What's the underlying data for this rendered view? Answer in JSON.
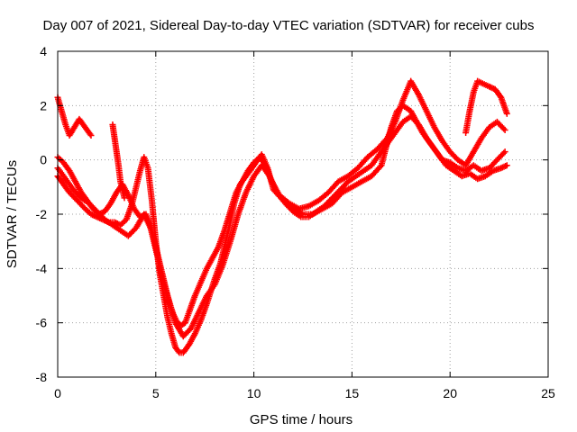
{
  "chart_data": {
    "type": "scatter",
    "title": "Day 007 of 2021, Sidereal Day-to-day VTEC variation (SDTVAR) for receiver cubs",
    "xlabel": "GPS time / hours",
    "ylabel": "SDTVAR / TECUs",
    "xlim": [
      0,
      25
    ],
    "ylim": [
      -8,
      4
    ],
    "xticks": [
      0,
      5,
      10,
      15,
      20,
      25
    ],
    "yticks": [
      -8,
      -6,
      -4,
      -2,
      0,
      2,
      4
    ],
    "xtick_labels": [
      "0",
      "5",
      "10",
      "15",
      "20",
      "25"
    ],
    "ytick_labels": [
      "-8",
      "-6",
      "-4",
      "-2",
      "0",
      "2",
      "4"
    ],
    "grid": true,
    "legend": "none",
    "marker": "+",
    "color": "#ff0000",
    "series": [
      {
        "x": [
          0.0,
          0.3,
          0.6,
          1.0,
          1.4,
          1.7,
          2.0,
          2.3,
          2.6,
          2.9,
          3.2,
          3.5,
          3.8,
          4.0,
          4.2,
          4.4,
          4.6,
          4.8,
          5.0,
          5.2,
          5.4,
          5.6,
          5.8,
          6.0,
          6.2,
          6.4,
          6.7,
          7.0,
          7.3,
          7.6,
          8.0,
          8.3,
          8.7,
          9.0,
          9.3,
          9.6,
          9.9,
          10.2,
          10.4,
          10.7,
          11.0,
          11.5,
          12.0,
          12.5,
          13.0,
          13.5,
          14.0,
          14.5,
          15.0,
          15.5,
          16.0,
          16.5,
          17.0,
          17.3,
          17.6,
          18.0,
          18.3,
          18.6,
          19.0,
          19.4,
          19.8,
          20.2,
          20.6,
          21.0,
          21.4,
          21.8,
          22.2,
          22.6,
          22.9
        ],
        "y": [
          -0.6,
          -0.9,
          -1.2,
          -1.5,
          -1.8,
          -2.0,
          -2.1,
          -2.2,
          -2.3,
          -2.3,
          -2.4,
          -2.2,
          -1.6,
          -1.0,
          -0.4,
          0.1,
          -0.3,
          -1.5,
          -3.0,
          -4.2,
          -5.0,
          -5.8,
          -6.4,
          -6.9,
          -7.1,
          -7.1,
          -6.8,
          -6.4,
          -5.9,
          -5.3,
          -4.4,
          -3.8,
          -2.6,
          -1.6,
          -0.9,
          -0.6,
          -0.3,
          0.0,
          0.2,
          -0.3,
          -1.1,
          -1.5,
          -1.8,
          -2.0,
          -2.0,
          -1.8,
          -1.6,
          -1.2,
          -1.0,
          -0.8,
          -0.6,
          -0.2,
          1.2,
          1.8,
          2.0,
          1.8,
          1.4,
          1.0,
          0.6,
          0.2,
          -0.2,
          -0.4,
          -0.6,
          -0.5,
          -0.7,
          -0.6,
          -0.4,
          -0.3,
          -0.2
        ]
      },
      {
        "x": [
          0.0,
          0.3,
          0.6,
          0.9,
          1.2,
          1.5,
          1.8,
          2.1,
          2.4,
          2.7,
          3.0,
          3.3,
          3.6,
          3.9,
          4.2,
          4.5,
          4.7,
          4.9,
          5.1,
          5.3,
          5.5,
          5.7,
          5.9,
          6.1,
          6.3,
          6.5,
          6.7,
          7.0,
          7.3,
          7.6,
          7.9,
          8.2,
          8.5,
          8.8,
          9.1,
          9.4,
          9.7,
          10.0,
          10.3,
          10.6,
          10.9,
          11.3,
          11.8,
          12.3,
          12.8,
          13.3,
          13.8,
          14.3,
          14.8,
          15.3,
          15.8,
          16.3,
          16.8,
          17.2,
          17.6,
          18.0,
          18.4,
          18.8,
          19.2,
          19.6,
          20.0,
          20.4,
          20.8,
          21.2,
          21.6,
          22.0,
          22.4,
          22.8
        ],
        "y": [
          0.1,
          -0.1,
          -0.4,
          -0.8,
          -1.2,
          -1.5,
          -1.8,
          -2.0,
          -1.9,
          -1.6,
          -1.2,
          -0.9,
          -1.3,
          -1.8,
          -2.1,
          -2.0,
          -2.4,
          -3.0,
          -3.6,
          -4.3,
          -4.8,
          -5.3,
          -5.7,
          -6.0,
          -6.1,
          -6.0,
          -5.6,
          -5.0,
          -4.5,
          -4.0,
          -3.6,
          -3.2,
          -2.6,
          -1.9,
          -1.2,
          -0.8,
          -0.4,
          -0.1,
          0.1,
          -0.2,
          -0.8,
          -1.3,
          -1.6,
          -1.8,
          -1.7,
          -1.5,
          -1.2,
          -0.8,
          -0.6,
          -0.3,
          0.1,
          0.4,
          0.8,
          1.4,
          2.2,
          2.9,
          2.4,
          1.8,
          1.2,
          0.7,
          0.3,
          0.0,
          -0.2,
          0.3,
          0.8,
          1.2,
          1.4,
          1.1
        ]
      },
      {
        "x": [
          0.0,
          0.4,
          0.8,
          1.2,
          1.6,
          2.0,
          2.4,
          2.8,
          3.2,
          3.6,
          4.0,
          4.4,
          4.8,
          5.2,
          5.6,
          6.0,
          6.4,
          6.8,
          7.2,
          7.6,
          8.0,
          8.4,
          8.8,
          9.2,
          9.6,
          10.0,
          10.4,
          10.8,
          11.2,
          11.6,
          12.0,
          12.4,
          12.8,
          13.2,
          13.6,
          14.0,
          14.4,
          14.8,
          15.2,
          15.6,
          16.0,
          16.4,
          16.8,
          17.2,
          17.6,
          18.0,
          18.4,
          18.8,
          19.2,
          19.6,
          20.0,
          20.4,
          20.8,
          21.2,
          21.6,
          22.0,
          22.4,
          22.8
        ],
        "y": [
          -0.3,
          -0.7,
          -1.1,
          -1.4,
          -1.6,
          -1.9,
          -2.2,
          -2.4,
          -2.6,
          -2.8,
          -2.5,
          -2.0,
          -2.6,
          -3.8,
          -5.0,
          -6.0,
          -6.5,
          -6.2,
          -5.6,
          -5.0,
          -4.6,
          -3.9,
          -3.0,
          -2.0,
          -1.2,
          -0.6,
          -0.2,
          -0.6,
          -1.2,
          -1.6,
          -1.9,
          -2.1,
          -2.1,
          -1.9,
          -1.7,
          -1.4,
          -1.1,
          -0.8,
          -0.6,
          -0.4,
          -0.2,
          0.2,
          0.6,
          1.0,
          1.4,
          1.6,
          1.3,
          0.8,
          0.4,
          0.0,
          -0.1,
          -0.3,
          -0.4,
          -0.2,
          -0.4,
          -0.3,
          0.0,
          0.3
        ]
      },
      {
        "x": [
          0.0,
          0.2,
          0.4,
          0.6,
          1.1,
          1.3,
          1.5,
          1.7,
          2.8,
          2.9,
          3.0,
          3.1,
          3.2,
          3.4,
          20.8,
          21.0,
          21.2,
          21.4,
          22.0,
          22.3,
          22.6,
          22.9
        ],
        "y": [
          2.3,
          1.8,
          1.3,
          0.9,
          1.5,
          1.3,
          1.1,
          0.9,
          1.3,
          0.8,
          0.3,
          -0.2,
          -0.8,
          -1.4,
          1.0,
          1.8,
          2.5,
          2.9,
          2.7,
          2.6,
          2.3,
          1.7
        ]
      }
    ]
  }
}
